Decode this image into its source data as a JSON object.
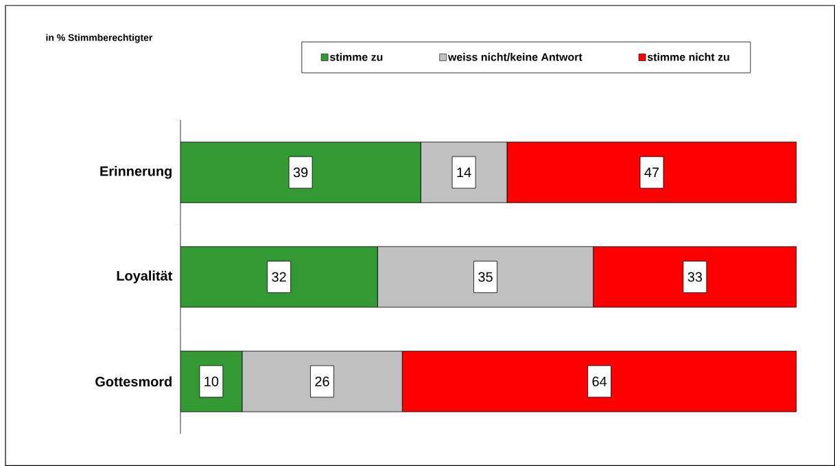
{
  "chart_data": {
    "type": "bar",
    "orientation": "horizontal",
    "stacked": true,
    "categories": [
      "Erinnerung",
      "Loyalität",
      "Gottesmord"
    ],
    "series": [
      {
        "name": "stimme zu",
        "color": "#339933",
        "values": [
          39,
          32,
          10
        ]
      },
      {
        "name": "weiss nicht/keine Antwort",
        "color": "#c0c0c0",
        "values": [
          14,
          35,
          26
        ]
      },
      {
        "name": "stimme nicht zu",
        "color": "#ff0000",
        "values": [
          47,
          33,
          64
        ]
      }
    ],
    "data_labels": true,
    "legend": "top",
    "tick_labels": "y",
    "annotations": [
      "in % Stimmberechtigter"
    ]
  }
}
